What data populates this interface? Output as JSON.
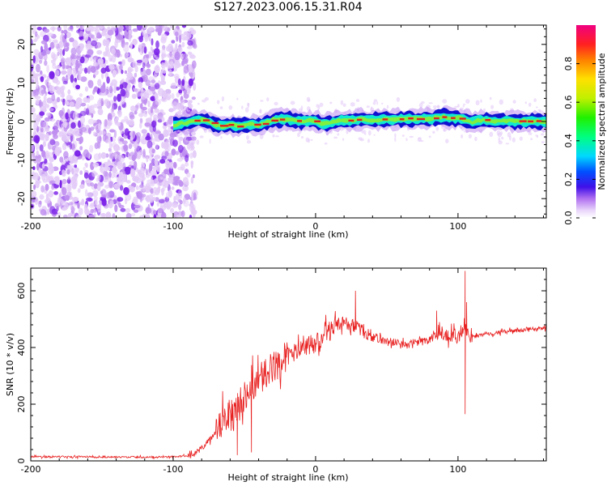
{
  "title": "S127.2023.006.15.31.R04",
  "chart_data": [
    {
      "type": "heatmap",
      "xlabel": "Height of straight line (km)",
      "ylabel": "Frequency (Hz)",
      "xlim": [
        -200,
        162
      ],
      "ylim": [
        -25,
        25
      ],
      "xticks": [
        -200,
        -100,
        0,
        100
      ],
      "yticks": [
        -20,
        -10,
        0,
        10,
        20
      ],
      "colorbar": {
        "label": "Normalized spectral amplitude",
        "range": [
          0,
          1
        ],
        "ticks": [
          "0.0",
          "0.2",
          "0.4",
          "0.6",
          "0.8"
        ]
      },
      "colors": {
        "noise_light": "#e4ccf8",
        "noise_mid": "#c090f0",
        "noise_dark": "#7a20e8",
        "signal_edge": "#1010d0",
        "signal_mid": "#10e8d0",
        "signal_core": "#e02020"
      },
      "noise_region_x": [
        -200,
        -88
      ],
      "signal_region_x": [
        -100,
        162
      ],
      "ridge": {
        "x": [
          -100,
          -95,
          -90,
          -85,
          -80,
          -75,
          -70,
          -65,
          -60,
          -55,
          -50,
          -45,
          -40,
          -35,
          -30,
          -25,
          -20,
          -15,
          -10,
          -5,
          0,
          5,
          10,
          15,
          20,
          25,
          30,
          35,
          40,
          45,
          50,
          55,
          60,
          65,
          70,
          75,
          80,
          85,
          90,
          95,
          100,
          105,
          110,
          115,
          120,
          125,
          130,
          135,
          140,
          145,
          150,
          155,
          160
        ],
        "freq": [
          -1.0,
          -0.5,
          -0.3,
          0.2,
          0.4,
          0.0,
          -1.0,
          -1.2,
          -0.8,
          -1.3,
          -0.9,
          -0.7,
          -1.0,
          -0.4,
          0.4,
          0.5,
          0.7,
          0.2,
          0.0,
          0.2,
          0.0,
          -0.6,
          -0.4,
          0.1,
          0.3,
          0.2,
          0.5,
          0.6,
          0.4,
          0.5,
          0.6,
          0.5,
          0.6,
          0.8,
          0.6,
          0.7,
          0.7,
          0.9,
          1.2,
          0.9,
          0.8,
          0.5,
          -0.2,
          0.3,
          0.4,
          0.2,
          0.1,
          0.3,
          0.0,
          0.1,
          0.0,
          0.1,
          0.0
        ]
      }
    },
    {
      "type": "line",
      "xlabel": "Height of straight line (km)",
      "ylabel": "SNR (10 * v/v)",
      "xlim": [
        -200,
        162
      ],
      "ylim": [
        0,
        680
      ],
      "xticks": [
        -200,
        -100,
        0,
        100
      ],
      "yticks": [
        0,
        200,
        400,
        600
      ],
      "series_color": "#e82020",
      "x": [
        -200,
        -190,
        -180,
        -170,
        -160,
        -150,
        -140,
        -130,
        -120,
        -110,
        -100,
        -95,
        -90,
        -85,
        -80,
        -75,
        -70,
        -65,
        -60,
        -55,
        -50,
        -45,
        -40,
        -35,
        -30,
        -25,
        -20,
        -15,
        -10,
        -5,
        0,
        5,
        10,
        15,
        20,
        25,
        30,
        35,
        40,
        45,
        50,
        55,
        60,
        65,
        70,
        75,
        80,
        85,
        90,
        95,
        100,
        105,
        110,
        115,
        120,
        125,
        130,
        135,
        140,
        145,
        150,
        155,
        160
      ],
      "y": [
        15,
        14,
        15,
        14,
        15,
        14,
        13,
        14,
        13,
        14,
        15,
        16,
        18,
        25,
        45,
        70,
        100,
        140,
        170,
        200,
        230,
        260,
        280,
        310,
        330,
        350,
        370,
        380,
        390,
        400,
        410,
        440,
        460,
        480,
        490,
        480,
        470,
        450,
        440,
        430,
        420,
        420,
        410,
        410,
        420,
        420,
        430,
        440,
        450,
        430,
        430,
        460,
        440,
        440,
        450,
        450,
        455,
        455,
        460,
        460,
        465,
        465,
        470
      ],
      "peaks": [
        [
          28,
          600
        ],
        [
          105,
          670
        ],
        [
          106,
          560
        ],
        [
          85,
          530
        ]
      ],
      "dips": [
        [
          105,
          165
        ],
        [
          -55,
          20
        ],
        [
          -45,
          30
        ]
      ]
    }
  ]
}
